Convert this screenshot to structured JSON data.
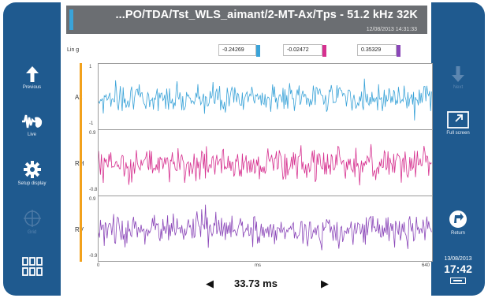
{
  "colors": {
    "frame": "#1f5a8f",
    "title_bg": "#6b6e72",
    "accent_blue": "#3aa3d8",
    "cursor_orange": "#f2a11c",
    "ch_ax": "#3aa3d8",
    "ch_rh": "#d6308f",
    "ch_rv": "#8a46b8"
  },
  "left_sidebar": {
    "previous": {
      "icon": "arrow-up-icon",
      "label": "Previous"
    },
    "live": {
      "icon": "waveform-hand-icon",
      "label": "Live"
    },
    "setup": {
      "icon": "gear-icon",
      "label": "Setup display"
    },
    "grid": {
      "icon": "crosshair-icon",
      "label": "Grid"
    },
    "menu": {
      "icon": "apps-grid-icon"
    }
  },
  "right_sidebar": {
    "next": {
      "icon": "arrow-down-icon",
      "label": "Next"
    },
    "fullscreen": {
      "icon": "expand-icon",
      "label": "Full screen"
    },
    "return": {
      "icon": "return-icon",
      "label": "Return"
    },
    "date": "13/08/2013",
    "time": "17:42",
    "battery": {
      "icon": "battery-icon"
    }
  },
  "header": {
    "title": "...PO/TDA/Tst_WLS_aimant/2-MT-Ax/Tps - 51.2 kHz 32K",
    "timestamp": "12/08/2013 14:31:33"
  },
  "plot": {
    "unit_label": "Lin g",
    "cursor_values": [
      "-0.24269",
      "-0.02472",
      "0.35329"
    ],
    "x_axis": {
      "min_label": "0",
      "unit": "ms",
      "max_label": "640"
    },
    "channels": [
      {
        "name": "Ax",
        "y_max": "1",
        "y_min": "-1"
      },
      {
        "name": "RH",
        "y_max": "0.9",
        "y_min": "-0.8"
      },
      {
        "name": "RV",
        "y_max": "0.9",
        "y_min": "-0.9"
      }
    ]
  },
  "navigation": {
    "prev_arrow": "◀",
    "next_arrow": "▶",
    "cursor_time": "33.73 ms"
  }
}
